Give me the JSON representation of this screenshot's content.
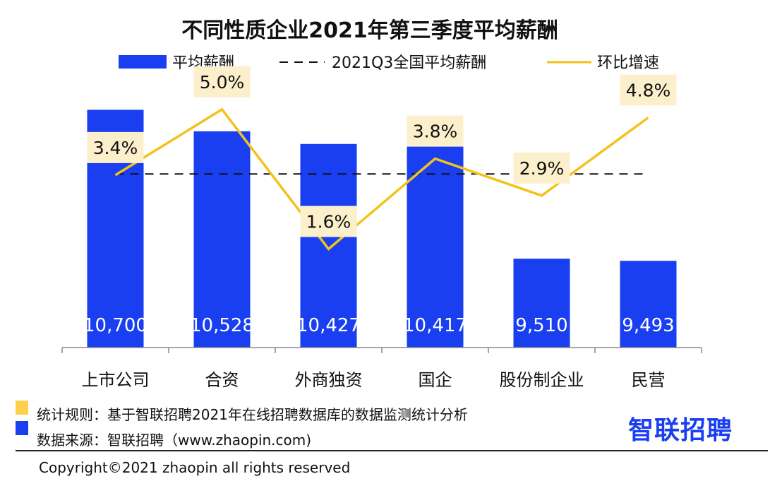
{
  "chart_data": {
    "type": "bar+line",
    "title": "不同性质企业2021年第三季度平均薪酬",
    "categories": [
      "上市公司",
      "合资",
      "外商独资",
      "国企",
      "股份制企业",
      "民营"
    ],
    "series": [
      {
        "name": "平均薪酬",
        "type": "bar",
        "values": [
          10700,
          10528,
          10427,
          10417,
          9510,
          9493
        ],
        "labels": [
          "10,700",
          "10,528",
          "10,427",
          "10,417",
          "9,510",
          "9,493"
        ],
        "color": "#1a3ff0"
      },
      {
        "name": "2021Q3全国平均薪酬",
        "type": "reference-line",
        "value": 10187,
        "style": "dashed",
        "color": "#111111"
      },
      {
        "name": "环比增速",
        "type": "line",
        "axis": "secondary",
        "values": [
          3.4,
          5.0,
          1.6,
          3.8,
          2.9,
          4.8
        ],
        "labels": [
          "3.4%",
          "5.0%",
          "1.6%",
          "3.8%",
          "2.9%",
          "4.8%"
        ],
        "color": "#f2c31b",
        "label_bg": "#fcefcc"
      }
    ],
    "ylim": [
      8800,
      10900
    ],
    "y2lim": [
      -0.8,
      5.6
    ],
    "legend": "top",
    "grid": false
  },
  "footer": {
    "rule_text": "统计规则：基于智联招聘2021年在线招聘数据库的数据监测统计分析",
    "source_text": "数据来源：智联招聘（www.zhaopin.com)",
    "rule_color": "#fcd04a",
    "source_color": "#1a3ff0",
    "logo": "智联招聘",
    "copyright": "Copyright©2021 zhaopin all rights reserved"
  }
}
